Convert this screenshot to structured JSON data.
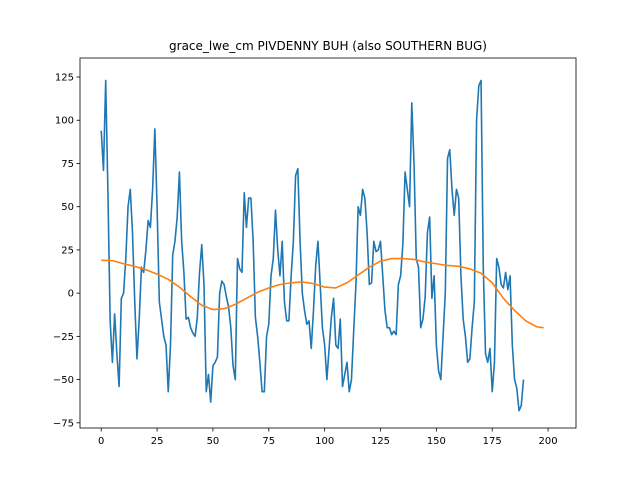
{
  "chart_data": {
    "type": "line",
    "title": "grace_lwe_cm PIVDENNY BUH (also SOUTHERN BUG)",
    "xlabel": "",
    "ylabel": "",
    "xlim": [
      -9.5,
      212.5
    ],
    "ylim": [
      -78,
      136
    ],
    "xticks": [
      0,
      25,
      50,
      75,
      100,
      125,
      150,
      175,
      200
    ],
    "yticks": [
      -75,
      -50,
      -25,
      0,
      25,
      50,
      75,
      100,
      125
    ],
    "grid": false,
    "legend": "none",
    "series": [
      {
        "color": "#1f77b4",
        "points": [
          [
            0,
            94
          ],
          [
            1,
            71
          ],
          [
            2,
            123
          ],
          [
            3,
            58
          ],
          [
            4,
            -16
          ],
          [
            5,
            -40
          ],
          [
            6,
            -12
          ],
          [
            7,
            -35
          ],
          [
            8,
            -54
          ],
          [
            9,
            -3
          ],
          [
            10,
            0
          ],
          [
            11,
            20
          ],
          [
            12,
            50
          ],
          [
            13,
            60
          ],
          [
            14,
            35
          ],
          [
            15,
            -5
          ],
          [
            16,
            -38
          ],
          [
            17,
            -15
          ],
          [
            18,
            15
          ],
          [
            19,
            12
          ],
          [
            20,
            25
          ],
          [
            21,
            42
          ],
          [
            22,
            38
          ],
          [
            23,
            60
          ],
          [
            24,
            95
          ],
          [
            25,
            50
          ],
          [
            26,
            -5
          ],
          [
            27,
            -15
          ],
          [
            28,
            -25
          ],
          [
            29,
            -30
          ],
          [
            30,
            -57
          ],
          [
            31,
            -30
          ],
          [
            32,
            22
          ],
          [
            33,
            30
          ],
          [
            34,
            44
          ],
          [
            35,
            70
          ],
          [
            36,
            30
          ],
          [
            37,
            12
          ],
          [
            38,
            -15
          ],
          [
            39,
            -14
          ],
          [
            40,
            -20
          ],
          [
            41,
            -23
          ],
          [
            42,
            -25
          ],
          [
            43,
            -14
          ],
          [
            44,
            12
          ],
          [
            45,
            28
          ],
          [
            46,
            5
          ],
          [
            47,
            -57
          ],
          [
            48,
            -47
          ],
          [
            49,
            -63
          ],
          [
            50,
            -42
          ],
          [
            51,
            -40
          ],
          [
            52,
            -37
          ],
          [
            53,
            0
          ],
          [
            54,
            7
          ],
          [
            55,
            5
          ],
          [
            56,
            -2
          ],
          [
            57,
            -8
          ],
          [
            58,
            -20
          ],
          [
            59,
            -42
          ],
          [
            60,
            -50
          ],
          [
            61,
            20
          ],
          [
            62,
            14
          ],
          [
            63,
            12
          ],
          [
            64,
            58
          ],
          [
            65,
            38
          ],
          [
            66,
            55
          ],
          [
            67,
            55
          ],
          [
            68,
            30
          ],
          [
            69,
            -14
          ],
          [
            70,
            -25
          ],
          [
            71,
            -40
          ],
          [
            72,
            -57
          ],
          [
            73,
            -57
          ],
          [
            74,
            -25
          ],
          [
            75,
            -18
          ],
          [
            76,
            10
          ],
          [
            77,
            20
          ],
          [
            78,
            48
          ],
          [
            79,
            25
          ],
          [
            80,
            10
          ],
          [
            81,
            30
          ],
          [
            82,
            -5
          ],
          [
            83,
            -16
          ],
          [
            84,
            -16
          ],
          [
            85,
            10
          ],
          [
            86,
            30
          ],
          [
            87,
            68
          ],
          [
            88,
            72
          ],
          [
            89,
            30
          ],
          [
            90,
            0
          ],
          [
            91,
            -10
          ],
          [
            92,
            -18
          ],
          [
            93,
            -16
          ],
          [
            94,
            -32
          ],
          [
            95,
            -10
          ],
          [
            96,
            16
          ],
          [
            97,
            30
          ],
          [
            98,
            5
          ],
          [
            99,
            -20
          ],
          [
            100,
            -30
          ],
          [
            101,
            -50
          ],
          [
            102,
            -32
          ],
          [
            103,
            -14
          ],
          [
            104,
            -3
          ],
          [
            105,
            -30
          ],
          [
            106,
            -32
          ],
          [
            107,
            -15
          ],
          [
            108,
            -54
          ],
          [
            109,
            -47
          ],
          [
            110,
            -40
          ],
          [
            111,
            -57
          ],
          [
            112,
            -50
          ],
          [
            113,
            -22
          ],
          [
            114,
            5
          ],
          [
            115,
            50
          ],
          [
            116,
            45
          ],
          [
            117,
            60
          ],
          [
            118,
            55
          ],
          [
            119,
            35
          ],
          [
            120,
            5
          ],
          [
            121,
            6
          ],
          [
            122,
            30
          ],
          [
            123,
            24
          ],
          [
            124,
            25
          ],
          [
            125,
            30
          ],
          [
            126,
            10
          ],
          [
            127,
            -10
          ],
          [
            128,
            -20
          ],
          [
            129,
            -20
          ],
          [
            130,
            -24
          ],
          [
            131,
            -22
          ],
          [
            132,
            -24
          ],
          [
            133,
            5
          ],
          [
            134,
            10
          ],
          [
            135,
            28
          ],
          [
            136,
            70
          ],
          [
            137,
            60
          ],
          [
            138,
            50
          ],
          [
            139,
            110
          ],
          [
            140,
            75
          ],
          [
            141,
            20
          ],
          [
            142,
            15
          ],
          [
            143,
            -20
          ],
          [
            144,
            -15
          ],
          [
            145,
            -2
          ],
          [
            146,
            35
          ],
          [
            147,
            44
          ],
          [
            148,
            -3
          ],
          [
            149,
            10
          ],
          [
            150,
            -30
          ],
          [
            151,
            -45
          ],
          [
            152,
            -50
          ],
          [
            153,
            -25
          ],
          [
            154,
            0
          ],
          [
            155,
            78
          ],
          [
            156,
            83
          ],
          [
            157,
            60
          ],
          [
            158,
            45
          ],
          [
            159,
            60
          ],
          [
            160,
            55
          ],
          [
            161,
            10
          ],
          [
            162,
            -15
          ],
          [
            163,
            -25
          ],
          [
            164,
            -40
          ],
          [
            165,
            -38
          ],
          [
            166,
            -20
          ],
          [
            167,
            -5
          ],
          [
            168,
            100
          ],
          [
            169,
            120
          ],
          [
            170,
            123
          ],
          [
            171,
            15
          ],
          [
            172,
            -35
          ],
          [
            173,
            -40
          ],
          [
            174,
            -32
          ],
          [
            175,
            -57
          ],
          [
            176,
            -40
          ],
          [
            177,
            20
          ],
          [
            178,
            15
          ],
          [
            179,
            5
          ],
          [
            180,
            3
          ],
          [
            181,
            12
          ],
          [
            182,
            2
          ],
          [
            183,
            10
          ],
          [
            184,
            -30
          ],
          [
            185,
            -50
          ],
          [
            186,
            -55
          ],
          [
            187,
            -68
          ],
          [
            188,
            -65
          ],
          [
            189,
            -50
          ]
        ]
      },
      {
        "color": "#ff7f0e",
        "points": [
          [
            0,
            19
          ],
          [
            5,
            18.8
          ],
          [
            10,
            17
          ],
          [
            15,
            15.5
          ],
          [
            20,
            13.5
          ],
          [
            25,
            11
          ],
          [
            30,
            8
          ],
          [
            35,
            3.5
          ],
          [
            40,
            -2
          ],
          [
            45,
            -7
          ],
          [
            50,
            -9.5
          ],
          [
            55,
            -9
          ],
          [
            60,
            -6.5
          ],
          [
            65,
            -3
          ],
          [
            70,
            0.5
          ],
          [
            75,
            3
          ],
          [
            80,
            5
          ],
          [
            85,
            6
          ],
          [
            90,
            6.5
          ],
          [
            95,
            5.5
          ],
          [
            100,
            3.5
          ],
          [
            105,
            3
          ],
          [
            110,
            6
          ],
          [
            115,
            10.5
          ],
          [
            120,
            15
          ],
          [
            125,
            18.5
          ],
          [
            130,
            20
          ],
          [
            135,
            20
          ],
          [
            140,
            19.5
          ],
          [
            145,
            18
          ],
          [
            150,
            17
          ],
          [
            155,
            16
          ],
          [
            160,
            15.5
          ],
          [
            165,
            14
          ],
          [
            170,
            11.5
          ],
          [
            175,
            6
          ],
          [
            180,
            -3
          ],
          [
            185,
            -10
          ],
          [
            190,
            -16
          ],
          [
            195,
            -19.5
          ],
          [
            198,
            -20
          ]
        ]
      }
    ]
  }
}
